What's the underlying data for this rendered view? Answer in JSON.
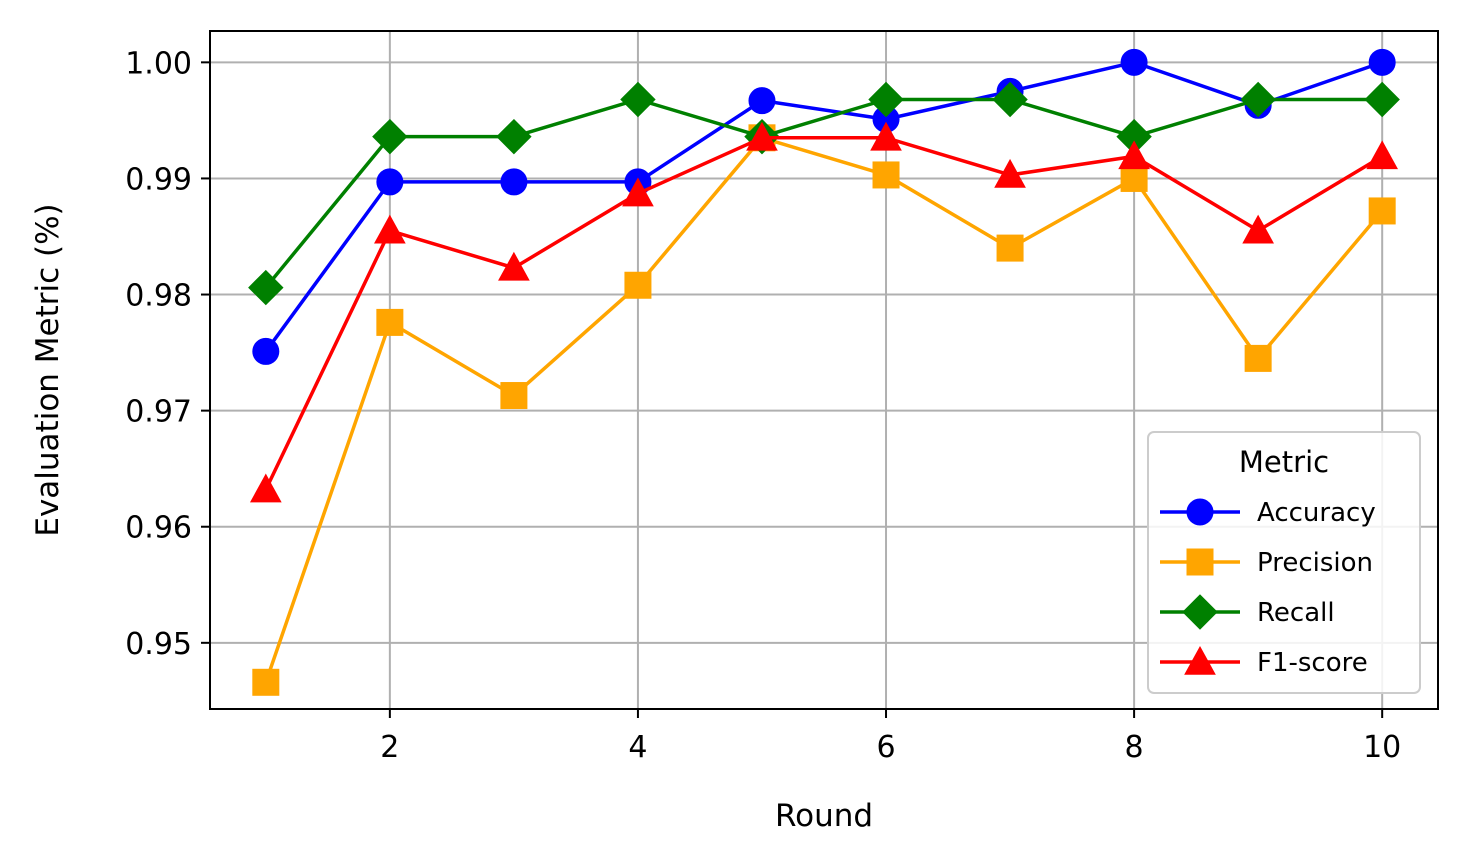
{
  "chart_data": {
    "type": "line",
    "title": "",
    "xlabel": "Round",
    "ylabel": "Evaluation Metric (%)",
    "x": [
      1,
      2,
      3,
      4,
      5,
      6,
      7,
      8,
      9,
      10
    ],
    "xlim": [
      0.55,
      10.45
    ],
    "ylim": [
      0.9443,
      1.0027
    ],
    "xticks": [
      2,
      4,
      6,
      8,
      10
    ],
    "xtick_labels": [
      "2",
      "4",
      "6",
      "8",
      "10"
    ],
    "yticks": [
      0.95,
      0.96,
      0.97,
      0.98,
      0.99,
      1.0
    ],
    "ytick_labels": [
      "0.95",
      "0.96",
      "0.97",
      "0.98",
      "0.99",
      "1.00"
    ],
    "grid": true,
    "legend": {
      "title": "Metric",
      "position": "lower-right"
    },
    "series": [
      {
        "name": "Accuracy",
        "color": "#0000ff",
        "marker": "circle",
        "values": [
          0.9751,
          0.9897,
          0.9897,
          0.9897,
          0.9967,
          0.9951,
          0.9975,
          1.0,
          0.9963,
          1.0
        ]
      },
      {
        "name": "Precision",
        "color": "#ffa500",
        "marker": "square",
        "values": [
          0.9466,
          0.9776,
          0.9713,
          0.9808,
          0.9935,
          0.9903,
          0.984,
          0.99,
          0.9745,
          0.9872
        ]
      },
      {
        "name": "Recall",
        "color": "#008000",
        "marker": "diamond",
        "values": [
          0.9806,
          0.9936,
          0.9936,
          0.9968,
          0.9936,
          0.9968,
          0.9968,
          0.9936,
          0.9968,
          0.9968
        ]
      },
      {
        "name": "F1-score",
        "color": "#ff0000",
        "marker": "triangle",
        "values": [
          0.9632,
          0.9855,
          0.9823,
          0.9887,
          0.9935,
          0.9935,
          0.9903,
          0.9919,
          0.9855,
          0.9919
        ]
      }
    ]
  }
}
